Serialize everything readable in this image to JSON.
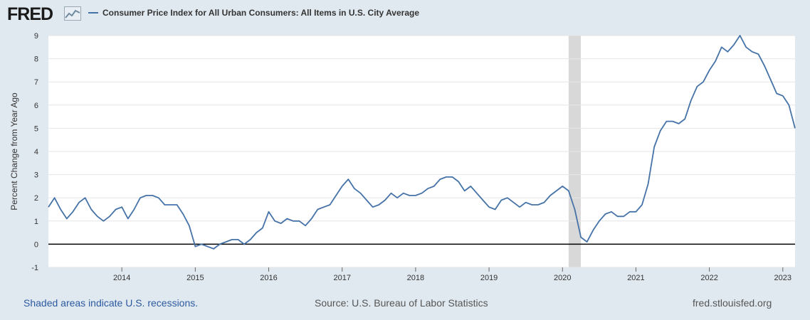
{
  "header": {
    "logo_text": "FRED",
    "logo_icon": "line-graph-icon",
    "legend_label": "Consumer Price Index for All Urban Consumers: All Items in U.S. City Average"
  },
  "footer": {
    "left": "Shaded areas indicate U.S. recessions.",
    "center": "Source: U.S. Bureau of Labor Statistics",
    "right": "fred.stlouisfed.org"
  },
  "colors": {
    "series": "#4572a7",
    "recession": "#d8d8d8",
    "background": "#e1e9f0",
    "plot": "#ffffff",
    "zero_line": "#000000"
  },
  "chart_data": {
    "type": "line",
    "title": "",
    "xlabel": "",
    "ylabel": "Percent Change from Year Ago",
    "ylim": [
      -1,
      9
    ],
    "yticks": [
      -1,
      0,
      1,
      2,
      3,
      4,
      5,
      6,
      7,
      8,
      9
    ],
    "xticks": [
      "2014",
      "2015",
      "2016",
      "2017",
      "2018",
      "2019",
      "2020",
      "2021",
      "2022",
      "2023"
    ],
    "xlim": [
      "2013-01",
      "2023-03"
    ],
    "grid": "horizontal",
    "recessions": [
      {
        "start": "2020-02",
        "end": "2020-04"
      }
    ],
    "series": [
      {
        "name": "Consumer Price Index for All Urban Consumers: All Items in U.S. City Average",
        "x": [
          "2013-01",
          "2013-02",
          "2013-03",
          "2013-04",
          "2013-05",
          "2013-06",
          "2013-07",
          "2013-08",
          "2013-09",
          "2013-10",
          "2013-11",
          "2013-12",
          "2014-01",
          "2014-02",
          "2014-03",
          "2014-04",
          "2014-05",
          "2014-06",
          "2014-07",
          "2014-08",
          "2014-09",
          "2014-10",
          "2014-11",
          "2014-12",
          "2015-01",
          "2015-02",
          "2015-03",
          "2015-04",
          "2015-05",
          "2015-06",
          "2015-07",
          "2015-08",
          "2015-09",
          "2015-10",
          "2015-11",
          "2015-12",
          "2016-01",
          "2016-02",
          "2016-03",
          "2016-04",
          "2016-05",
          "2016-06",
          "2016-07",
          "2016-08",
          "2016-09",
          "2016-10",
          "2016-11",
          "2016-12",
          "2017-01",
          "2017-02",
          "2017-03",
          "2017-04",
          "2017-05",
          "2017-06",
          "2017-07",
          "2017-08",
          "2017-09",
          "2017-10",
          "2017-11",
          "2017-12",
          "2018-01",
          "2018-02",
          "2018-03",
          "2018-04",
          "2018-05",
          "2018-06",
          "2018-07",
          "2018-08",
          "2018-09",
          "2018-10",
          "2018-11",
          "2018-12",
          "2019-01",
          "2019-02",
          "2019-03",
          "2019-04",
          "2019-05",
          "2019-06",
          "2019-07",
          "2019-08",
          "2019-09",
          "2019-10",
          "2019-11",
          "2019-12",
          "2020-01",
          "2020-02",
          "2020-03",
          "2020-04",
          "2020-05",
          "2020-06",
          "2020-07",
          "2020-08",
          "2020-09",
          "2020-10",
          "2020-11",
          "2020-12",
          "2021-01",
          "2021-02",
          "2021-03",
          "2021-04",
          "2021-05",
          "2021-06",
          "2021-07",
          "2021-08",
          "2021-09",
          "2021-10",
          "2021-11",
          "2021-12",
          "2022-01",
          "2022-02",
          "2022-03",
          "2022-04",
          "2022-05",
          "2022-06",
          "2022-07",
          "2022-08",
          "2022-09",
          "2022-10",
          "2022-11",
          "2022-12",
          "2023-01",
          "2023-02",
          "2023-03"
        ],
        "values": [
          1.6,
          2.0,
          1.5,
          1.1,
          1.4,
          1.8,
          2.0,
          1.5,
          1.2,
          1.0,
          1.2,
          1.5,
          1.6,
          1.1,
          1.5,
          2.0,
          2.1,
          2.1,
          2.0,
          1.7,
          1.7,
          1.7,
          1.3,
          0.8,
          -0.1,
          0.0,
          -0.1,
          -0.2,
          0.0,
          0.1,
          0.2,
          0.2,
          0.0,
          0.2,
          0.5,
          0.7,
          1.4,
          1.0,
          0.9,
          1.1,
          1.0,
          1.0,
          0.8,
          1.1,
          1.5,
          1.6,
          1.7,
          2.1,
          2.5,
          2.8,
          2.4,
          2.2,
          1.9,
          1.6,
          1.7,
          1.9,
          2.2,
          2.0,
          2.2,
          2.1,
          2.1,
          2.2,
          2.4,
          2.5,
          2.8,
          2.9,
          2.9,
          2.7,
          2.3,
          2.5,
          2.2,
          1.9,
          1.6,
          1.5,
          1.9,
          2.0,
          1.8,
          1.6,
          1.8,
          1.7,
          1.7,
          1.8,
          2.1,
          2.3,
          2.5,
          2.3,
          1.5,
          0.3,
          0.1,
          0.6,
          1.0,
          1.3,
          1.4,
          1.2,
          1.2,
          1.4,
          1.4,
          1.7,
          2.6,
          4.2,
          4.9,
          5.3,
          5.3,
          5.2,
          5.4,
          6.2,
          6.8,
          7.0,
          7.5,
          7.9,
          8.5,
          8.3,
          8.6,
          9.0,
          8.5,
          8.3,
          8.2,
          7.7,
          7.1,
          6.5,
          6.4,
          6.0,
          5.0
        ]
      }
    ]
  }
}
